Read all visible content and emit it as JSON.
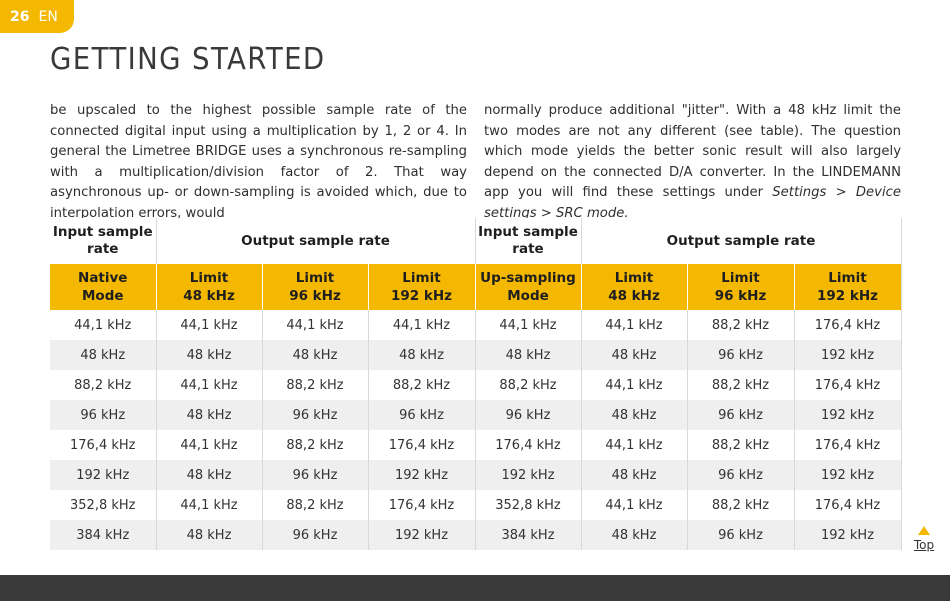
{
  "header": {
    "page_number": "26",
    "language": "EN"
  },
  "title": "GETTING STARTED",
  "text": {
    "left": "be upscaled to the highest possible sample rate of the connected digital input using a multiplication by 1, 2 or 4. In general the Limetree BRIDGE uses a synchronous re-sampling with a multiplication/division factor of 2. That way asynchronous up- or down-sampling is avoided which, due to interpolation errors, would",
    "right_intro": "normally produce additional \"jitter\". With a 48 kHz limit the two modes are not any different (see table). The question which mode yields the better sonic result will also largely depend on the connected D/A converter. In the LINDEMANN app you will find these settings under ",
    "right_path": "Settings > Device settings > SRC mode."
  },
  "table": {
    "group_headers": {
      "input_left": "Input sample rate",
      "output_left": "Output sample rate",
      "input_right": "Input sample rate",
      "output_right": "Output sample rate"
    },
    "sub_headers": [
      [
        "Native",
        "Mode"
      ],
      [
        "Limit",
        "48 kHz"
      ],
      [
        "Limit",
        "96 kHz"
      ],
      [
        "Limit",
        "192 kHz"
      ],
      [
        "Up-sampling",
        "Mode"
      ],
      [
        "Limit",
        "48 kHz"
      ],
      [
        "Limit",
        "96 kHz"
      ],
      [
        "Limit",
        "192 kHz"
      ]
    ],
    "rows": [
      [
        "44,1 kHz",
        "44,1 kHz",
        "44,1 kHz",
        "44,1 kHz",
        "44,1 kHz",
        "44,1 kHz",
        "88,2 kHz",
        "176,4 kHz"
      ],
      [
        "48 kHz",
        "48 kHz",
        "48 kHz",
        "48 kHz",
        "48 kHz",
        "48 kHz",
        "96 kHz",
        "192 kHz"
      ],
      [
        "88,2 kHz",
        "44,1 kHz",
        "88,2 kHz",
        "88,2 kHz",
        "88,2 kHz",
        "44,1 kHz",
        "88,2 kHz",
        "176,4 kHz"
      ],
      [
        "96 kHz",
        "48 kHz",
        "96 kHz",
        "96 kHz",
        "96 kHz",
        "48 kHz",
        "96 kHz",
        "192 kHz"
      ],
      [
        "176,4 kHz",
        "44,1 kHz",
        "88,2 kHz",
        "176,4 kHz",
        "176,4 kHz",
        "44,1 kHz",
        "88,2 kHz",
        "176,4 kHz"
      ],
      [
        "192 kHz",
        "48 kHz",
        "96 kHz",
        "192 kHz",
        "192 kHz",
        "48 kHz",
        "96 kHz",
        "192 kHz"
      ],
      [
        "352,8 kHz",
        "44,1 kHz",
        "88,2 kHz",
        "176,4 kHz",
        "352,8 kHz",
        "44,1 kHz",
        "88,2 kHz",
        "176,4 kHz"
      ],
      [
        "384 kHz",
        "48 kHz",
        "96 kHz",
        "192 kHz",
        "384 kHz",
        "48 kHz",
        "96 kHz",
        "192 kHz"
      ]
    ]
  },
  "nav": {
    "top_label": "Top"
  },
  "colors": {
    "accent": "#f5b800",
    "footer": "#3a3a3a",
    "row_alt": "#efefef"
  }
}
